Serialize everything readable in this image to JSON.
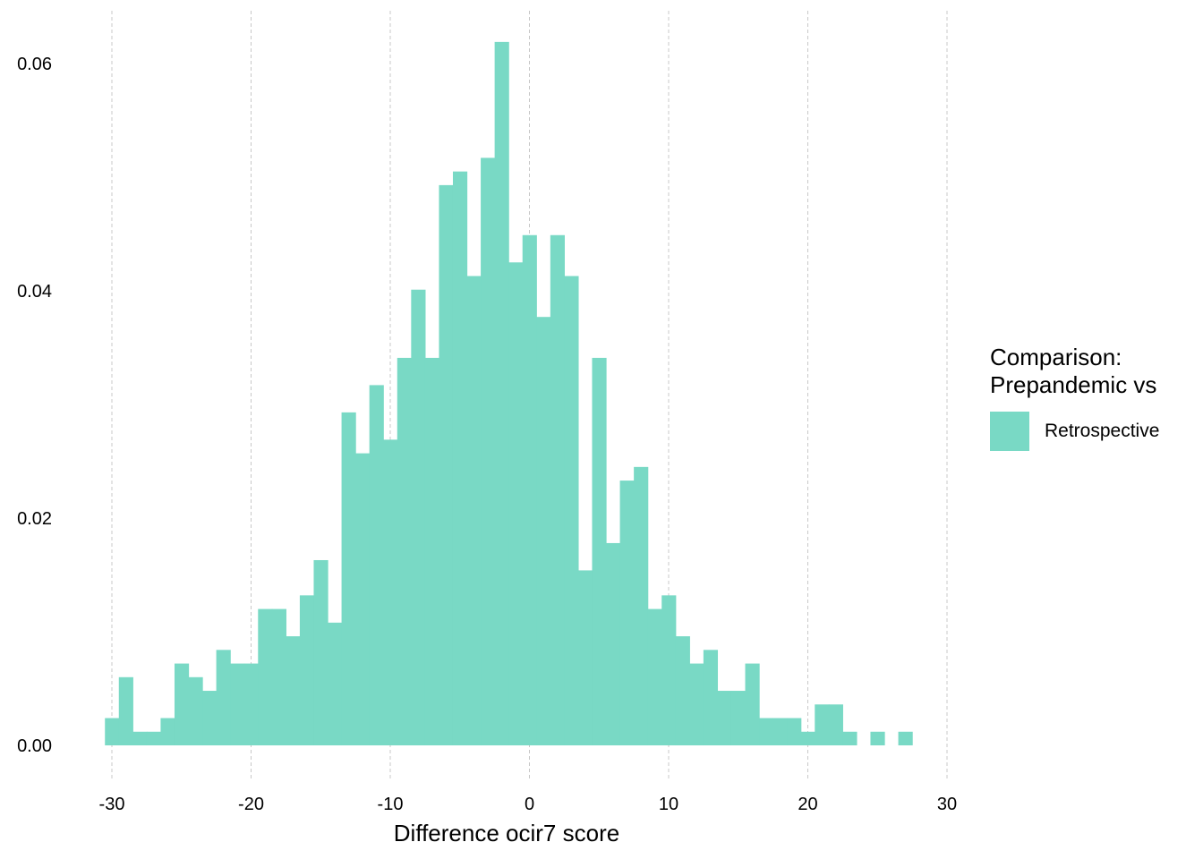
{
  "chart_data": {
    "type": "bar",
    "subtype": "histogram",
    "xlabel": "Difference ocir7 score",
    "ylabel": "",
    "xlim": [
      -30.5,
      27.5
    ],
    "ylim": [
      0,
      0.062
    ],
    "x_ticks": [
      -30,
      -20,
      -10,
      0,
      10,
      20,
      30
    ],
    "x_tick_labels": [
      "-30",
      "-20",
      "-10",
      "0",
      "10",
      "20",
      "30"
    ],
    "y_ticks": [
      0,
      0.02,
      0.04,
      0.06
    ],
    "y_tick_labels": [
      "0.00",
      "0.02",
      "0.04",
      "0.06"
    ],
    "grid": "vertical major lines, dashed",
    "bin_width": 1,
    "bin_start": -30.5,
    "series": [
      {
        "name": "Retrospective",
        "color": "#79D9C5",
        "values": [
          0.0024,
          0.006,
          0.0012,
          0.0012,
          0.0024,
          0.0072,
          0.006,
          0.0048,
          0.0084,
          0.0072,
          0.0072,
          0.012,
          0.012,
          0.0096,
          0.0132,
          0.0163,
          0.0108,
          0.0293,
          0.0257,
          0.0317,
          0.0269,
          0.0341,
          0.0401,
          0.0341,
          0.0493,
          0.0505,
          0.0413,
          0.0517,
          0.0619,
          0.0425,
          0.0449,
          0.0377,
          0.0449,
          0.0413,
          0.0154,
          0.0341,
          0.0178,
          0.0233,
          0.0245,
          0.012,
          0.0132,
          0.0096,
          0.0072,
          0.0084,
          0.0048,
          0.0048,
          0.0072,
          0.0024,
          0.0024,
          0.0024,
          0.0012,
          0.0036,
          0.0036,
          0.0012,
          0,
          0.0012,
          0,
          0.0012
        ]
      }
    ],
    "legend": {
      "title": "Comparison:\nPrepandemic vs",
      "position": "right",
      "items": [
        "Retrospective"
      ]
    }
  }
}
